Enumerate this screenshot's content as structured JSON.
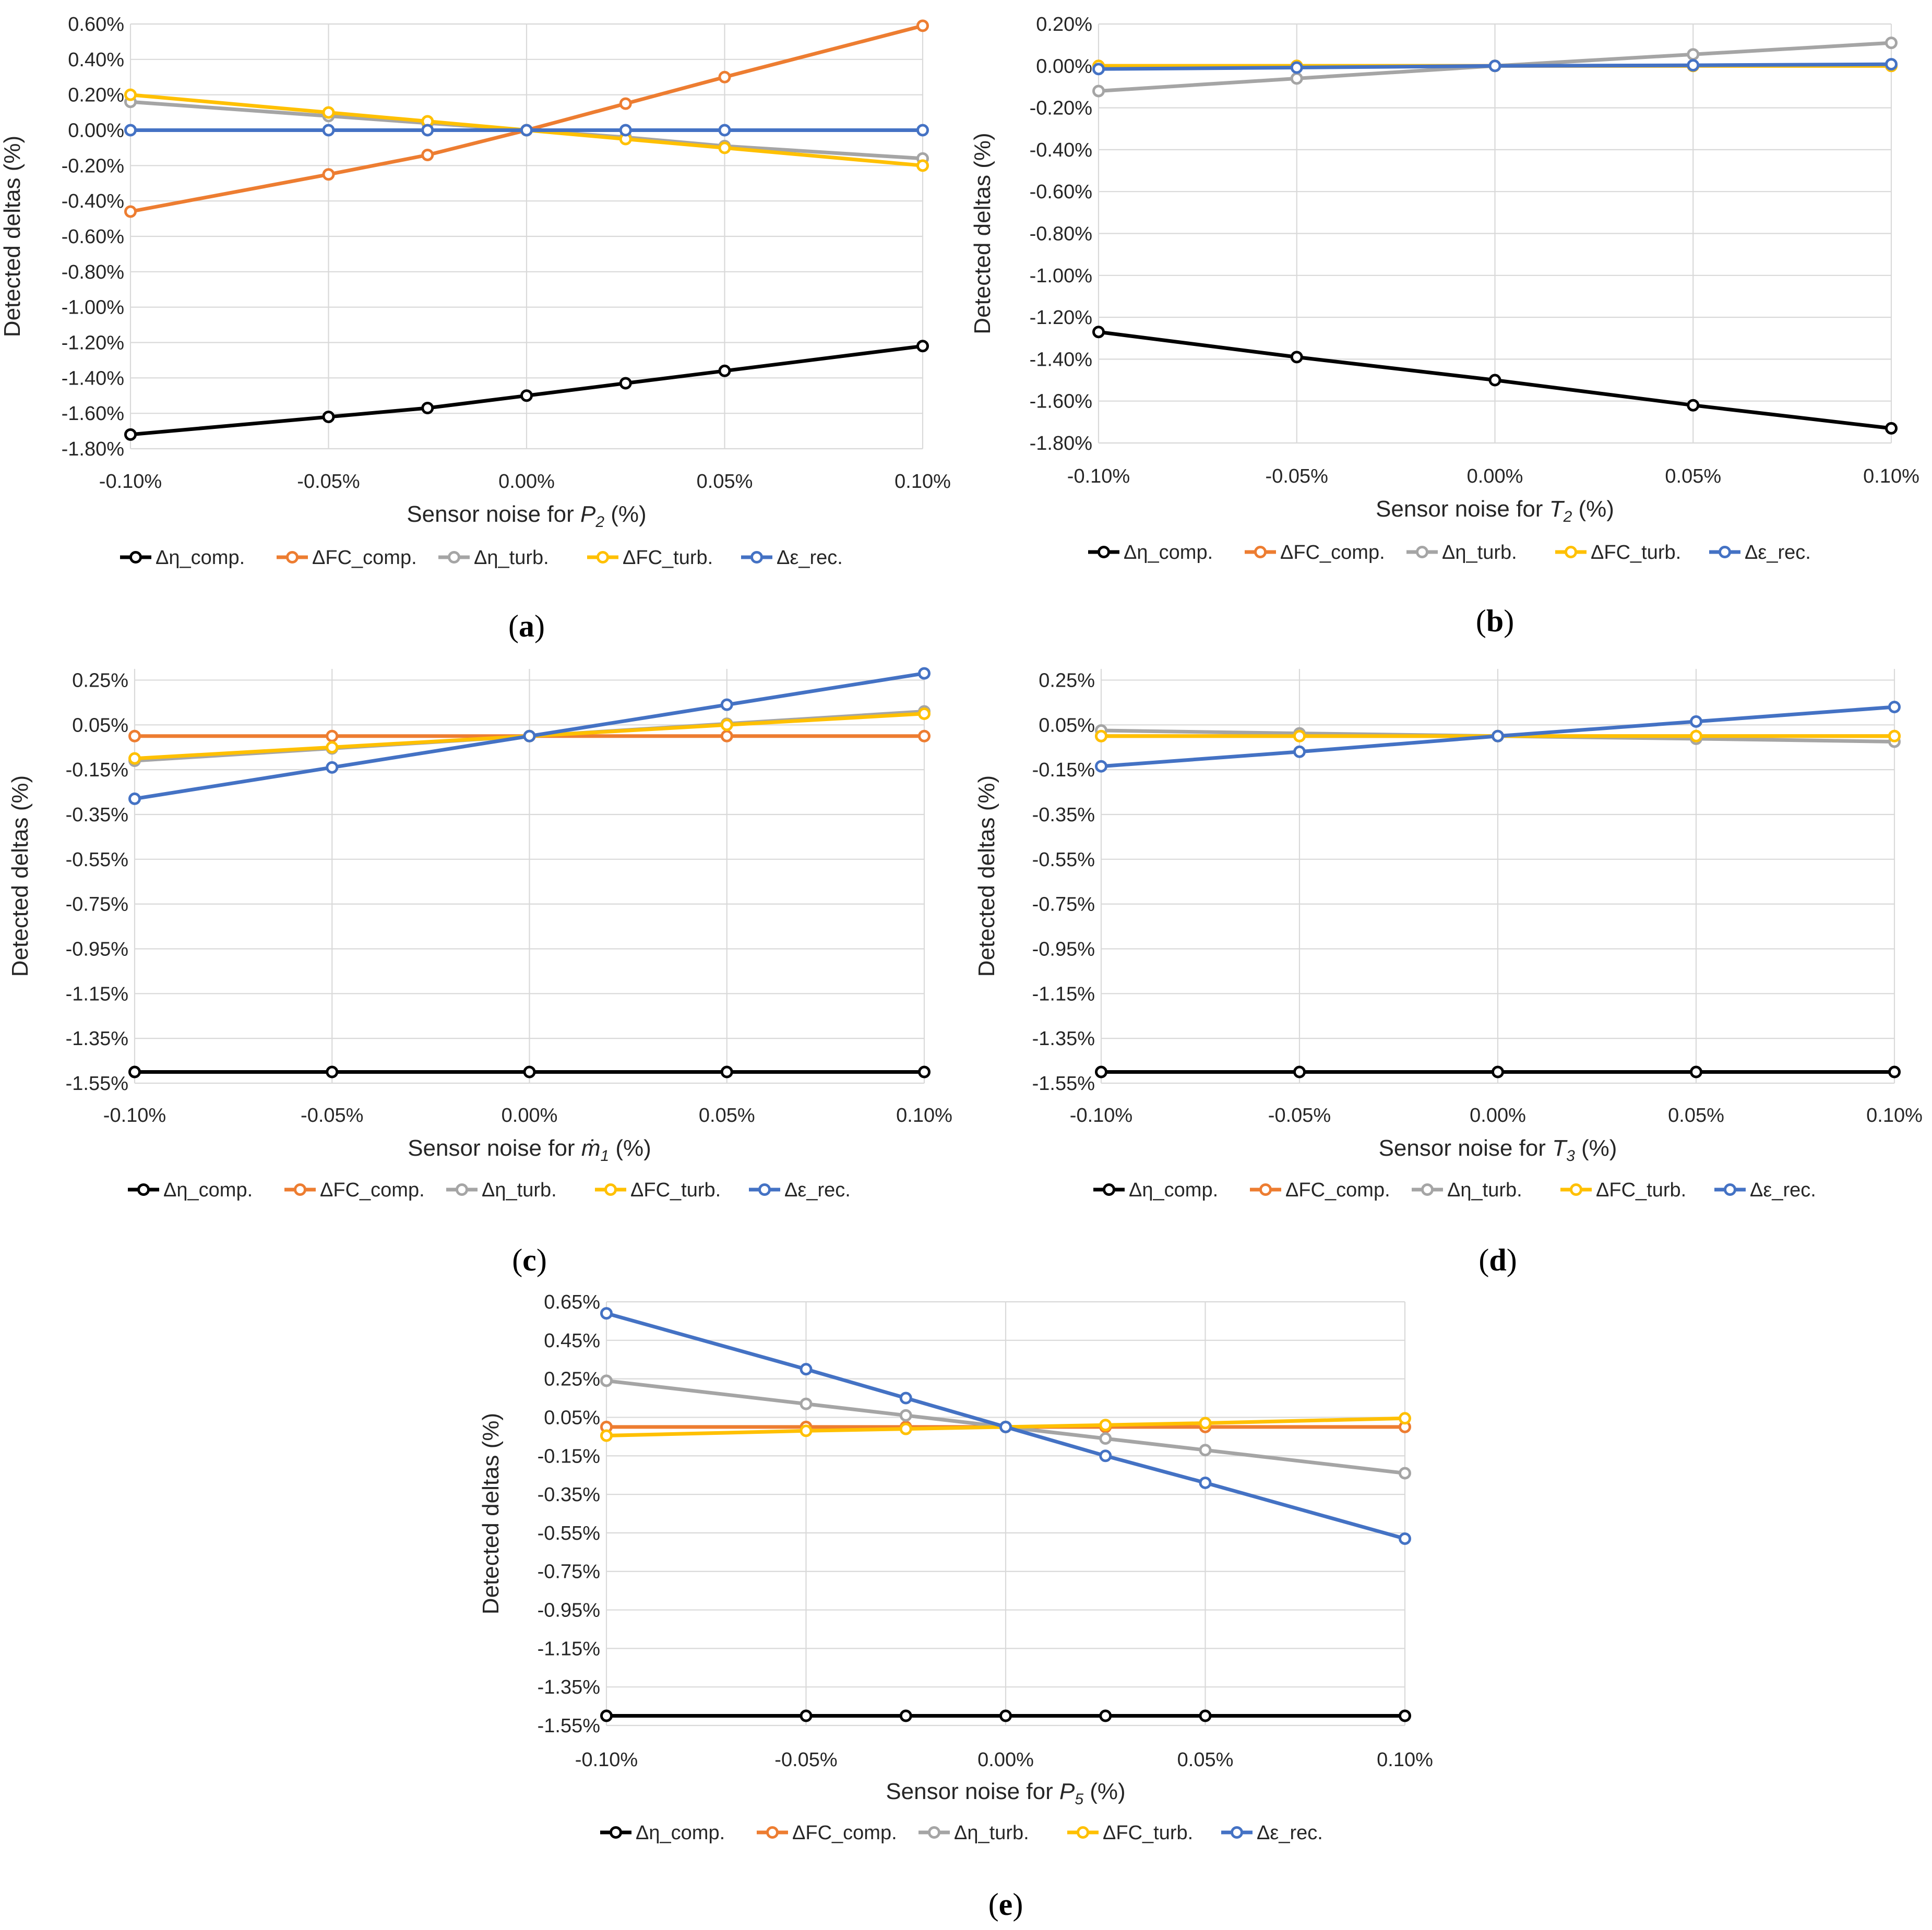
{
  "figure": {
    "ylabel": "Detected deltas (%)",
    "xlabel_prefix": "Sensor noise for ",
    "xlabel_suffix": " (%)"
  },
  "colors": {
    "eta_comp": "#000000",
    "fc_comp": "#ED7D31",
    "eta_turb": "#A5A5A5",
    "fc_turb": "#FFC000",
    "eps_rec": "#4472C4"
  },
  "legend": [
    "Δη_comp.",
    "ΔFC_comp.",
    "Δη_turb.",
    "ΔFC_turb.",
    "Δε_rec."
  ],
  "chart_data": [
    {
      "type": "line",
      "panel": "a",
      "caption": "a",
      "title": "",
      "xlabel_var": "P",
      "xlabel_sub": "2",
      "xlabel": "Sensor noise for P2 (%)",
      "ylabel": "Detected deltas (%)",
      "x": [
        -0.1,
        -0.05,
        -0.025,
        0.0,
        0.025,
        0.05,
        0.1
      ],
      "xlim": [
        -0.1,
        0.1
      ],
      "xticks": [
        -0.1,
        -0.05,
        0.0,
        0.05,
        0.1
      ],
      "xtick_labels": [
        "-0.10%",
        "-0.05%",
        "0.00%",
        "0.05%",
        "0.10%"
      ],
      "ylim": [
        -1.8,
        0.6
      ],
      "yticks": [
        -1.8,
        -1.6,
        -1.4,
        -1.2,
        -1.0,
        -0.8,
        -0.6,
        -0.4,
        -0.2,
        0.0,
        0.2,
        0.4,
        0.6
      ],
      "ytick_labels": [
        "-1.80%",
        "-1.60%",
        "-1.40%",
        "-1.20%",
        "-1.00%",
        "-0.80%",
        "-0.60%",
        "-0.40%",
        "-0.20%",
        "0.00%",
        "0.20%",
        "0.40%",
        "0.60%"
      ],
      "series": [
        {
          "name": "Δη_comp.",
          "key": "eta_comp",
          "values": [
            -1.72,
            -1.62,
            -1.57,
            -1.5,
            -1.43,
            -1.36,
            -1.22
          ]
        },
        {
          "name": "ΔFC_comp.",
          "key": "fc_comp",
          "values": [
            -0.46,
            -0.25,
            -0.14,
            0.0,
            0.15,
            0.3,
            0.59
          ]
        },
        {
          "name": "Δη_turb.",
          "key": "eta_turb",
          "values": [
            0.16,
            0.08,
            0.04,
            0.0,
            -0.04,
            -0.09,
            -0.16
          ]
        },
        {
          "name": "ΔFC_turb.",
          "key": "fc_turb",
          "values": [
            0.2,
            0.1,
            0.05,
            0.0,
            -0.05,
            -0.1,
            -0.2
          ]
        },
        {
          "name": "Δε_rec.",
          "key": "eps_rec",
          "values": [
            0.0,
            0.0,
            0.0,
            0.0,
            0.0,
            0.0,
            0.0
          ]
        }
      ]
    },
    {
      "type": "line",
      "panel": "b",
      "caption": "b",
      "title": "",
      "xlabel_var": "T",
      "xlabel_sub": "2",
      "xlabel": "Sensor noise for T2 (%)",
      "ylabel": "Detected deltas (%)",
      "x": [
        -0.1,
        -0.05,
        0.0,
        0.05,
        0.1
      ],
      "xlim": [
        -0.1,
        0.1
      ],
      "xticks": [
        -0.1,
        -0.05,
        0.0,
        0.05,
        0.1
      ],
      "xtick_labels": [
        "-0.10%",
        "-0.05%",
        "0.00%",
        "0.05%",
        "0.10%"
      ],
      "ylim": [
        -1.8,
        0.2
      ],
      "yticks": [
        -1.8,
        -1.6,
        -1.4,
        -1.2,
        -1.0,
        -0.8,
        -0.6,
        -0.4,
        -0.2,
        0.0,
        0.2
      ],
      "ytick_labels": [
        "-1.80%",
        "-1.60%",
        "-1.40%",
        "-1.20%",
        "-1.00%",
        "-0.80%",
        "-0.60%",
        "-0.40%",
        "-0.20%",
        "0.00%",
        "0.20%"
      ],
      "series": [
        {
          "name": "Δη_comp.",
          "key": "eta_comp",
          "values": [
            -1.27,
            -1.39,
            -1.5,
            -1.62,
            -1.73
          ]
        },
        {
          "name": "ΔFC_comp.",
          "key": "fc_comp",
          "values": [
            0.0,
            0.0,
            0.0,
            0.0,
            0.0
          ]
        },
        {
          "name": "Δη_turb.",
          "key": "eta_turb",
          "values": [
            -0.12,
            -0.06,
            0.0,
            0.055,
            0.11
          ]
        },
        {
          "name": "ΔFC_turb.",
          "key": "fc_turb",
          "values": [
            0.0,
            0.0,
            0.0,
            0.0,
            0.0
          ]
        },
        {
          "name": "Δε_rec.",
          "key": "eps_rec",
          "values": [
            -0.015,
            -0.008,
            0.0,
            0.003,
            0.008
          ]
        }
      ]
    },
    {
      "type": "line",
      "panel": "c",
      "caption": "c",
      "title": "",
      "xlabel_var": "ṁ",
      "xlabel_sub": "1",
      "xlabel": "Sensor noise for ṁ1 (%)",
      "ylabel": "Detected deltas (%)",
      "x": [
        -0.1,
        -0.05,
        0.0,
        0.05,
        0.1
      ],
      "xlim": [
        -0.1,
        0.1
      ],
      "xticks": [
        -0.1,
        -0.05,
        0.0,
        0.05,
        0.1
      ],
      "xtick_labels": [
        "-0.10%",
        "-0.05%",
        "0.00%",
        "0.05%",
        "0.10%"
      ],
      "ylim": [
        -1.55,
        0.3
      ],
      "yticks": [
        -1.55,
        -1.35,
        -1.15,
        -0.95,
        -0.75,
        -0.55,
        -0.35,
        -0.15,
        0.05,
        0.25
      ],
      "ytick_labels": [
        "-1.55%",
        "-1.35%",
        "-1.15%",
        "-0.95%",
        "-0.75%",
        "-0.55%",
        "-0.35%",
        "-0.15%",
        "0.05%",
        "0.25%"
      ],
      "series": [
        {
          "name": "Δη_comp.",
          "key": "eta_comp",
          "values": [
            -1.5,
            -1.5,
            -1.5,
            -1.5,
            -1.5
          ]
        },
        {
          "name": "ΔFC_comp.",
          "key": "fc_comp",
          "values": [
            0.0,
            0.0,
            0.0,
            0.0,
            0.0
          ]
        },
        {
          "name": "Δη_turb.",
          "key": "eta_turb",
          "values": [
            -0.11,
            -0.055,
            0.0,
            0.055,
            0.11
          ]
        },
        {
          "name": "ΔFC_turb.",
          "key": "fc_turb",
          "values": [
            -0.1,
            -0.05,
            0.0,
            0.05,
            0.1
          ]
        },
        {
          "name": "Δε_rec.",
          "key": "eps_rec",
          "values": [
            -0.28,
            -0.14,
            0.0,
            0.14,
            0.28
          ]
        }
      ]
    },
    {
      "type": "line",
      "panel": "d",
      "caption": "d",
      "title": "",
      "xlabel_var": "T",
      "xlabel_sub": "3",
      "xlabel": "Sensor noise for T3 (%)",
      "ylabel": "Detected deltas (%)",
      "x": [
        -0.1,
        -0.05,
        0.0,
        0.05,
        0.1
      ],
      "xlim": [
        -0.1,
        0.1
      ],
      "xticks": [
        -0.1,
        -0.05,
        0.0,
        0.05,
        0.1
      ],
      "xtick_labels": [
        "-0.10%",
        "-0.05%",
        "0.00%",
        "0.05%",
        "0.10%"
      ],
      "ylim": [
        -1.55,
        0.3
      ],
      "yticks": [
        -1.55,
        -1.35,
        -1.15,
        -0.95,
        -0.75,
        -0.55,
        -0.35,
        -0.15,
        0.05,
        0.25
      ],
      "ytick_labels": [
        "-1.55%",
        "-1.35%",
        "-1.15%",
        "-0.95%",
        "-0.75%",
        "-0.55%",
        "-0.35%",
        "-0.15%",
        "0.05%",
        "0.25%"
      ],
      "series": [
        {
          "name": "Δη_comp.",
          "key": "eta_comp",
          "values": [
            -1.5,
            -1.5,
            -1.5,
            -1.5,
            -1.5
          ]
        },
        {
          "name": "ΔFC_comp.",
          "key": "fc_comp",
          "values": [
            0.0,
            0.0,
            0.0,
            0.0,
            0.0
          ]
        },
        {
          "name": "Δη_turb.",
          "key": "eta_turb",
          "values": [
            0.025,
            0.012,
            0.0,
            -0.012,
            -0.025
          ]
        },
        {
          "name": "ΔFC_turb.",
          "key": "fc_turb",
          "values": [
            0.0,
            0.0,
            0.0,
            0.0,
            0.0
          ]
        },
        {
          "name": "Δε_rec.",
          "key": "eps_rec",
          "values": [
            -0.135,
            -0.07,
            0.0,
            0.065,
            0.13
          ]
        }
      ]
    },
    {
      "type": "line",
      "panel": "e",
      "caption": "e",
      "title": "",
      "xlabel_var": "P",
      "xlabel_sub": "5",
      "xlabel": "Sensor noise for P5 (%)",
      "ylabel": "Detected deltas (%)",
      "x": [
        -0.1,
        -0.05,
        -0.025,
        0.0,
        0.025,
        0.05,
        0.1
      ],
      "xlim": [
        -0.1,
        0.1
      ],
      "xticks": [
        -0.1,
        -0.05,
        0.0,
        0.05,
        0.1
      ],
      "xtick_labels": [
        "-0.10%",
        "-0.05%",
        "0.00%",
        "0.05%",
        "0.10%"
      ],
      "ylim": [
        -1.55,
        0.65
      ],
      "yticks": [
        -1.55,
        -1.35,
        -1.15,
        -0.95,
        -0.75,
        -0.55,
        -0.35,
        -0.15,
        0.05,
        0.25,
        0.45,
        0.65
      ],
      "ytick_labels": [
        "-1.55%",
        "-1.35%",
        "-1.15%",
        "-0.95%",
        "-0.75%",
        "-0.55%",
        "-0.35%",
        "-0.15%",
        "0.05%",
        "0.25%",
        "0.45%",
        "0.65%"
      ],
      "series": [
        {
          "name": "Δη_comp.",
          "key": "eta_comp",
          "values": [
            -1.5,
            -1.5,
            -1.5,
            -1.5,
            -1.5,
            -1.5,
            -1.5
          ]
        },
        {
          "name": "ΔFC_comp.",
          "key": "fc_comp",
          "values": [
            0.0,
            0.0,
            0.0,
            0.0,
            0.0,
            0.0,
            0.0
          ]
        },
        {
          "name": "Δη_turb.",
          "key": "eta_turb",
          "values": [
            0.24,
            0.12,
            0.06,
            0.0,
            -0.06,
            -0.12,
            -0.24
          ]
        },
        {
          "name": "ΔFC_turb.",
          "key": "fc_turb",
          "values": [
            -0.045,
            -0.02,
            -0.01,
            0.0,
            0.01,
            0.02,
            0.045
          ]
        },
        {
          "name": "Δε_rec.",
          "key": "eps_rec",
          "values": [
            0.59,
            0.3,
            0.15,
            0.0,
            -0.15,
            -0.29,
            -0.58
          ]
        }
      ]
    }
  ]
}
